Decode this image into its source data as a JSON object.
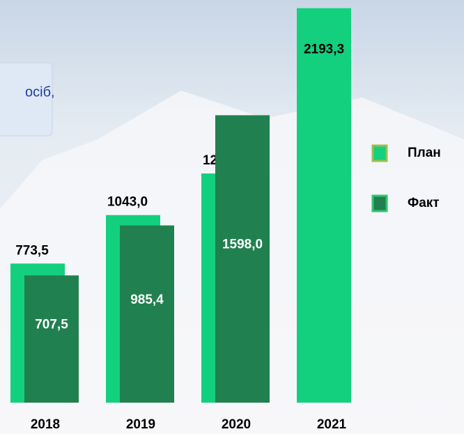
{
  "chart_data": {
    "type": "bar",
    "annotation": "осіб,",
    "categories": [
      "2018",
      "2019",
      "2020",
      "2021"
    ],
    "series": [
      {
        "name": "План",
        "color": "#13d07f",
        "values": [
          773.5,
          1043.0,
          1274.3,
          2193.3
        ],
        "value_labels": [
          "773,5",
          "1043,0",
          "1274,3",
          "2193,3"
        ]
      },
      {
        "name": "Факт",
        "color": "#21804f",
        "values": [
          707.5,
          985.4,
          1598.0,
          null
        ],
        "value_labels": [
          "707,5",
          "985,4",
          "1598,0",
          null
        ]
      }
    ],
    "ylim": [
      0,
      2200
    ]
  }
}
